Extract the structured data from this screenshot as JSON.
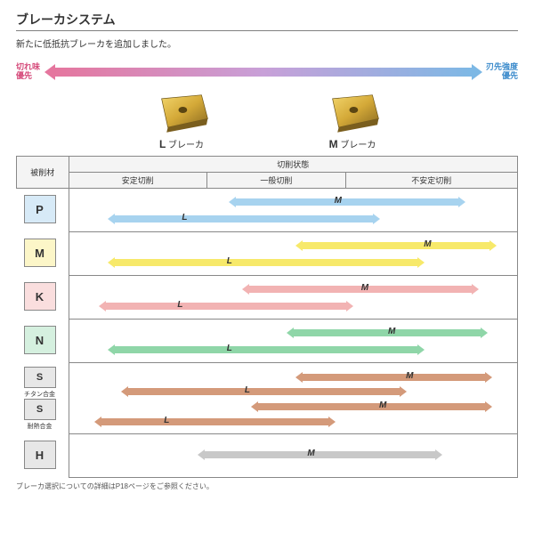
{
  "title": "ブレーカシステム",
  "subtitle": "新たに低抵抗ブレーカを追加しました。",
  "gradient": {
    "left_label": "切れ味\n優先",
    "right_label": "刃先強度\n優先",
    "left_color": "#e5769e",
    "right_color": "#7db8e5"
  },
  "inserts": [
    {
      "letter": "L",
      "suffix": " ブレーカ"
    },
    {
      "letter": "M",
      "suffix": " ブレーカ"
    }
  ],
  "table_header": {
    "material": "被削材",
    "cond_group": "切削状態",
    "conds": [
      "安定切削",
      "一般切削",
      "不安定切削"
    ]
  },
  "colors": {
    "P": "#a7d3ef",
    "M": "#f7e96a",
    "K": "#f2b3b3",
    "N": "#8fd6a8",
    "S": "#d49a7a",
    "H": "#c8c8c8"
  },
  "mat_fill": {
    "P": "#d7eaf7",
    "M": "#fcf6c8",
    "K": "#fadede",
    "N": "#d5f0df",
    "S": "#e7e7e7",
    "H": "#e7e7e7"
  },
  "rows": [
    {
      "mat": "P",
      "bars": [
        {
          "label": "M",
          "start": 37,
          "end": 87,
          "label_pos": 60,
          "y": 22
        },
        {
          "label": "L",
          "start": 10,
          "end": 68,
          "label_pos": 26,
          "y": 62
        }
      ]
    },
    {
      "mat": "M",
      "bars": [
        {
          "label": "M",
          "start": 52,
          "end": 94,
          "label_pos": 80,
          "y": 22
        },
        {
          "label": "L",
          "start": 10,
          "end": 78,
          "label_pos": 36,
          "y": 62
        }
      ]
    },
    {
      "mat": "K",
      "bars": [
        {
          "label": "M",
          "start": 40,
          "end": 90,
          "label_pos": 66,
          "y": 22
        },
        {
          "label": "L",
          "start": 8,
          "end": 62,
          "label_pos": 25,
          "y": 62
        }
      ]
    },
    {
      "mat": "N",
      "bars": [
        {
          "label": "M",
          "start": 50,
          "end": 92,
          "label_pos": 72,
          "y": 22
        },
        {
          "label": "L",
          "start": 10,
          "end": 78,
          "label_pos": 36,
          "y": 62
        }
      ]
    },
    {
      "mat": "S",
      "subs": [
        "チタン合金",
        "耐熱合金"
      ],
      "tall": true,
      "bars": [
        {
          "label": "M",
          "start": 52,
          "end": 93,
          "label_pos": 76,
          "y": 15
        },
        {
          "label": "L",
          "start": 13,
          "end": 74,
          "label_pos": 40,
          "y": 36
        },
        {
          "label": "M",
          "start": 42,
          "end": 93,
          "label_pos": 70,
          "y": 57
        },
        {
          "label": "L",
          "start": 7,
          "end": 58,
          "label_pos": 22,
          "y": 78
        }
      ]
    },
    {
      "mat": "H",
      "bars": [
        {
          "label": "M",
          "start": 30,
          "end": 82,
          "label_pos": 54,
          "y": 40
        }
      ]
    }
  ],
  "footnote": "ブレーカ選択についての詳細はP18ページをご参照ください。"
}
